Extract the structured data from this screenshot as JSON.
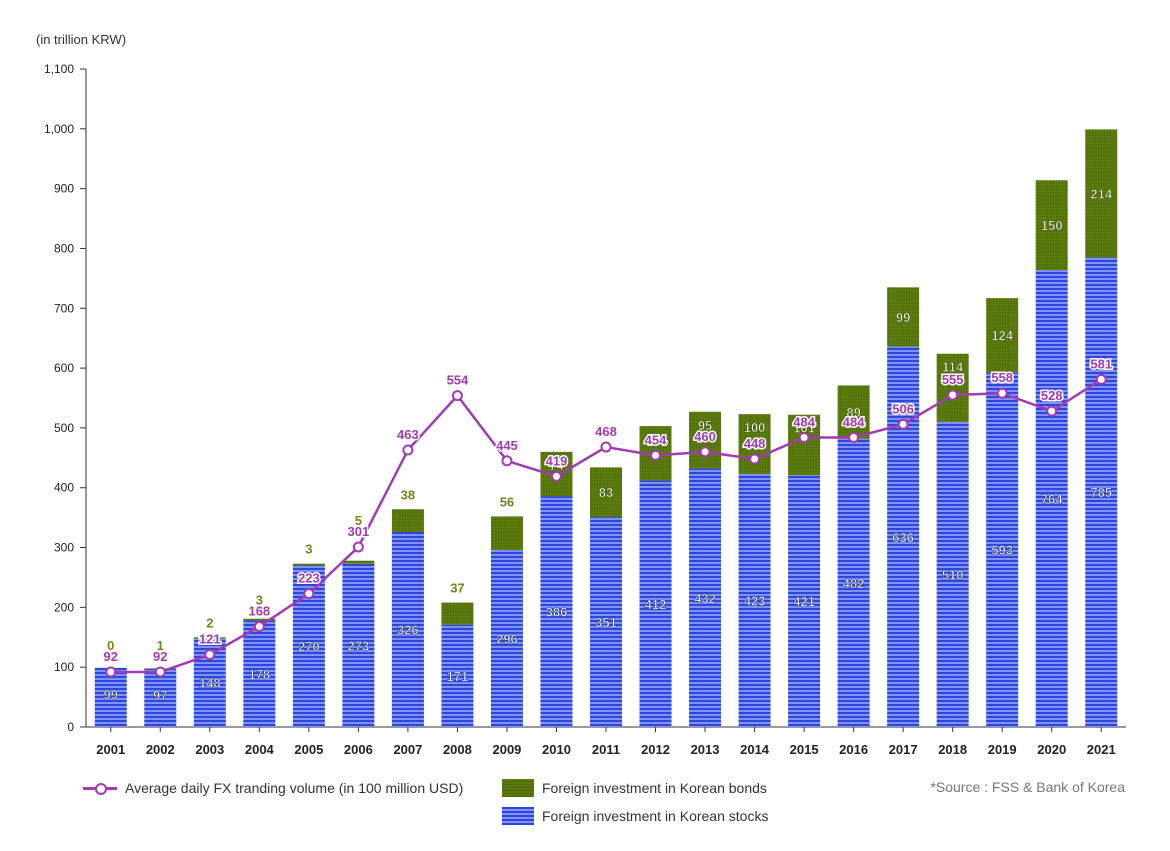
{
  "unit_label": "(in trillion KRW)",
  "source": "*Source : FSS & Bank of Korea",
  "legend": {
    "line": "Average daily FX tranding volume (in 100 million USD)",
    "bonds": "Foreign investment in Korean bonds",
    "stocks": "Foreign investment in Korean stocks"
  },
  "colors": {
    "stocks": "#2f47d8",
    "stocks_light": "#7f92ff",
    "bonds": "#5b7a0d",
    "line": "#a23bb0",
    "bonds_label": "#6b8a1a"
  },
  "chart_data": {
    "type": "bar",
    "stacked": true,
    "categories": [
      "2001",
      "2002",
      "2003",
      "2004",
      "2005",
      "2006",
      "2007",
      "2008",
      "2009",
      "2010",
      "2011",
      "2012",
      "2013",
      "2014",
      "2015",
      "2016",
      "2017",
      "2018",
      "2019",
      "2020",
      "2021"
    ],
    "yticks": [
      "0",
      "100",
      "200",
      "300",
      "400",
      "500",
      "600",
      "700",
      "800",
      "900",
      "1,000",
      "1,100"
    ],
    "ylim": [
      0,
      1100
    ],
    "ylabel": "(in trillion KRW)",
    "grid": false,
    "legend_position": "bottom",
    "series": [
      {
        "name": "Foreign investment in Korean stocks",
        "type": "bar",
        "values": [
          99,
          97,
          148,
          178,
          270,
          273,
          326,
          171,
          296,
          386,
          351,
          412,
          432,
          423,
          421,
          482,
          636,
          510,
          593,
          764,
          785
        ]
      },
      {
        "name": "Foreign investment in Korean bonds",
        "type": "bar",
        "values": [
          0,
          1,
          2,
          3,
          3,
          5,
          38,
          37,
          56,
          74,
          83,
          91,
          95,
          100,
          101,
          89,
          99,
          114,
          124,
          150,
          214
        ]
      },
      {
        "name": "Average daily FX tranding volume (in 100 million USD)",
        "type": "line",
        "values": [
          92,
          92,
          121,
          168,
          223,
          301,
          463,
          554,
          445,
          419,
          468,
          454,
          460,
          448,
          484,
          484,
          506,
          555,
          558,
          528,
          581
        ]
      }
    ]
  }
}
